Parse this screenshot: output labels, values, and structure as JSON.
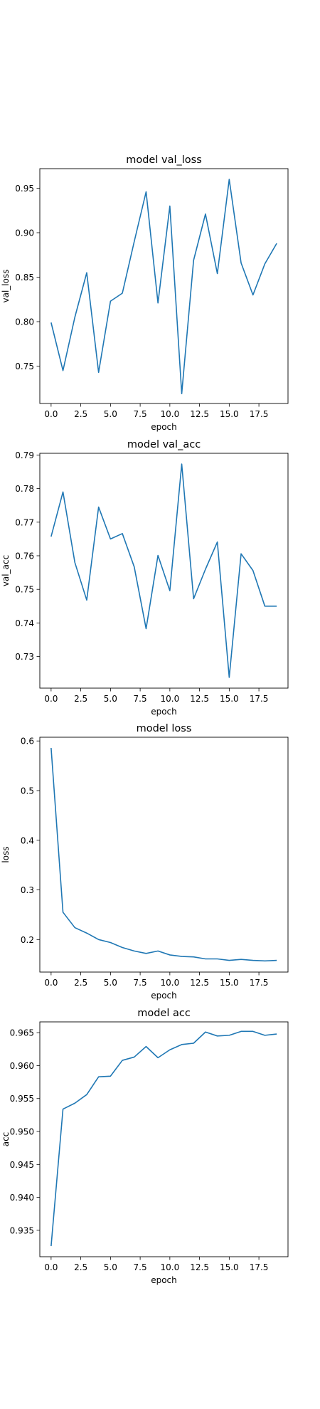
{
  "chart_data": [
    {
      "type": "line",
      "title": "model val_loss",
      "xlabel": "epoch",
      "ylabel": "val_loss",
      "xlim": [
        -0.95,
        19.95
      ],
      "ylim": [
        0.708,
        0.972
      ],
      "xticks": [
        "0.0",
        "2.5",
        "5.0",
        "7.5",
        "10.0",
        "12.5",
        "15.0",
        "17.5"
      ],
      "xtick_values": [
        0,
        2.5,
        5,
        7.5,
        10,
        12.5,
        15,
        17.5
      ],
      "yticks": [
        "0.75",
        "0.80",
        "0.85",
        "0.90",
        "0.95"
      ],
      "ytick_values": [
        0.75,
        0.8,
        0.85,
        0.9,
        0.95
      ],
      "grid": false,
      "color": "#1f77b4",
      "series": [
        {
          "x": [
            0,
            1,
            2,
            3,
            4,
            5,
            6,
            7,
            8,
            9,
            10,
            11,
            12,
            13,
            14,
            15,
            16,
            17,
            18,
            19
          ],
          "values": [
            0.799,
            0.745,
            0.805,
            0.855,
            0.743,
            0.823,
            0.832,
            0.89,
            0.946,
            0.821,
            0.93,
            0.719,
            0.869,
            0.921,
            0.854,
            0.96,
            0.866,
            0.83,
            0.865,
            0.888
          ]
        }
      ]
    },
    {
      "type": "line",
      "title": "model val_acc",
      "xlabel": "epoch",
      "ylabel": "val_acc",
      "xlim": [
        -0.95,
        19.95
      ],
      "ylim": [
        0.7206,
        0.7905
      ],
      "xticks": [
        "0.0",
        "2.5",
        "5.0",
        "7.5",
        "10.0",
        "12.5",
        "15.0",
        "17.5"
      ],
      "xtick_values": [
        0,
        2.5,
        5,
        7.5,
        10,
        12.5,
        15,
        17.5
      ],
      "yticks": [
        "0.73",
        "0.74",
        "0.75",
        "0.76",
        "0.77",
        "0.78",
        "0.79"
      ],
      "ytick_values": [
        0.73,
        0.74,
        0.75,
        0.76,
        0.77,
        0.78,
        0.79
      ],
      "grid": false,
      "color": "#1f77b4",
      "series": [
        {
          "x": [
            0,
            1,
            2,
            3,
            4,
            5,
            6,
            7,
            8,
            9,
            10,
            11,
            12,
            13,
            14,
            15,
            16,
            17,
            18,
            19
          ],
          "values": [
            0.7657,
            0.779,
            0.758,
            0.7468,
            0.7745,
            0.765,
            0.7666,
            0.7567,
            0.7383,
            0.7601,
            0.7496,
            0.7873,
            0.7472,
            0.756,
            0.7641,
            0.7238,
            0.7606,
            0.7556,
            0.745,
            0.745
          ]
        }
      ]
    },
    {
      "type": "line",
      "title": "model loss",
      "xlabel": "epoch",
      "ylabel": "loss",
      "xlim": [
        -0.95,
        19.95
      ],
      "ylim": [
        0.1345,
        0.6075
      ],
      "xticks": [
        "0.0",
        "2.5",
        "5.0",
        "7.5",
        "10.0",
        "12.5",
        "15.0",
        "17.5"
      ],
      "xtick_values": [
        0,
        2.5,
        5,
        7.5,
        10,
        12.5,
        15,
        17.5
      ],
      "yticks": [
        "0.2",
        "0.3",
        "0.4",
        "0.5",
        "0.6"
      ],
      "ytick_values": [
        0.2,
        0.3,
        0.4,
        0.5,
        0.6
      ],
      "grid": false,
      "color": "#1f77b4",
      "series": [
        {
          "x": [
            0,
            1,
            2,
            3,
            4,
            5,
            6,
            7,
            8,
            9,
            10,
            11,
            12,
            13,
            14,
            15,
            16,
            17,
            18,
            19
          ],
          "values": [
            0.586,
            0.255,
            0.224,
            0.213,
            0.2,
            0.194,
            0.184,
            0.177,
            0.172,
            0.177,
            0.169,
            0.166,
            0.165,
            0.161,
            0.161,
            0.158,
            0.16,
            0.158,
            0.157,
            0.158
          ]
        }
      ]
    },
    {
      "type": "line",
      "title": "model acc",
      "xlabel": "epoch",
      "ylabel": "acc",
      "xlim": [
        -0.95,
        19.95
      ],
      "ylim": [
        0.93099,
        0.96664
      ],
      "xticks": [
        "0.0",
        "2.5",
        "5.0",
        "7.5",
        "10.0",
        "12.5",
        "15.0",
        "17.5"
      ],
      "xtick_values": [
        0,
        2.5,
        5,
        7.5,
        10,
        12.5,
        15,
        17.5
      ],
      "yticks": [
        "0.935",
        "0.940",
        "0.945",
        "0.950",
        "0.955",
        "0.960",
        "0.965"
      ],
      "ytick_values": [
        0.935,
        0.94,
        0.945,
        0.95,
        0.955,
        0.96,
        0.965
      ],
      "grid": false,
      "color": "#1f77b4",
      "series": [
        {
          "x": [
            0,
            1,
            2,
            3,
            4,
            5,
            6,
            7,
            8,
            9,
            10,
            11,
            12,
            13,
            14,
            15,
            16,
            17,
            18,
            19
          ],
          "values": [
            0.9326,
            0.9534,
            0.9543,
            0.9556,
            0.9583,
            0.9584,
            0.9608,
            0.9613,
            0.9629,
            0.9612,
            0.9624,
            0.9632,
            0.9634,
            0.9651,
            0.9645,
            0.9646,
            0.9652,
            0.9652,
            0.9646,
            0.9648
          ]
        }
      ]
    }
  ]
}
